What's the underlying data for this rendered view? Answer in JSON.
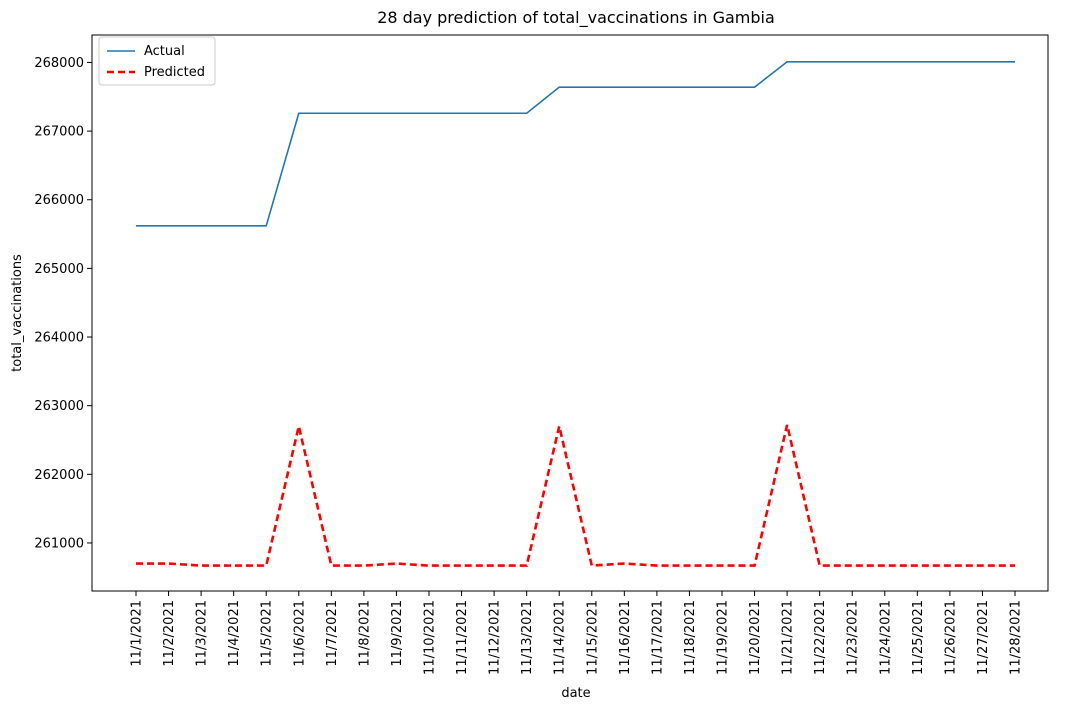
{
  "chart_data": {
    "type": "line",
    "title": "28 day prediction of total_vaccinations in Gambia",
    "xlabel": "date",
    "ylabel": "total_vaccinations",
    "categories": [
      "11/1/2021",
      "11/2/2021",
      "11/3/2021",
      "11/4/2021",
      "11/5/2021",
      "11/6/2021",
      "11/7/2021",
      "11/8/2021",
      "11/9/2021",
      "11/10/2021",
      "11/11/2021",
      "11/12/2021",
      "11/13/2021",
      "11/14/2021",
      "11/15/2021",
      "11/16/2021",
      "11/17/2021",
      "11/18/2021",
      "11/19/2021",
      "11/20/2021",
      "11/21/2021",
      "11/22/2021",
      "11/23/2021",
      "11/24/2021",
      "11/25/2021",
      "11/26/2021",
      "11/27/2021",
      "11/28/2021"
    ],
    "ylim": [
      260300,
      268400
    ],
    "yticks": [
      261000,
      262000,
      263000,
      264000,
      265000,
      266000,
      267000,
      268000
    ],
    "series": [
      {
        "name": "Actual",
        "color": "#1f77b4",
        "style": "solid",
        "values": [
          265620,
          265620,
          265620,
          265620,
          265620,
          267260,
          267260,
          267260,
          267260,
          267260,
          267260,
          267260,
          267260,
          267640,
          267640,
          267640,
          267640,
          267640,
          267640,
          267640,
          268010,
          268010,
          268010,
          268010,
          268010,
          268010,
          268010,
          268010
        ]
      },
      {
        "name": "Predicted",
        "color": "#ff0000",
        "style": "dashed",
        "values": [
          260700,
          260700,
          260670,
          260670,
          260670,
          262700,
          260670,
          260670,
          260700,
          260670,
          260670,
          260670,
          260670,
          262700,
          260670,
          260700,
          260670,
          260670,
          260670,
          260670,
          262720,
          260670,
          260670,
          260670,
          260670,
          260670,
          260670,
          260670
        ]
      }
    ],
    "legend_position": "top-left",
    "grid": false
  }
}
